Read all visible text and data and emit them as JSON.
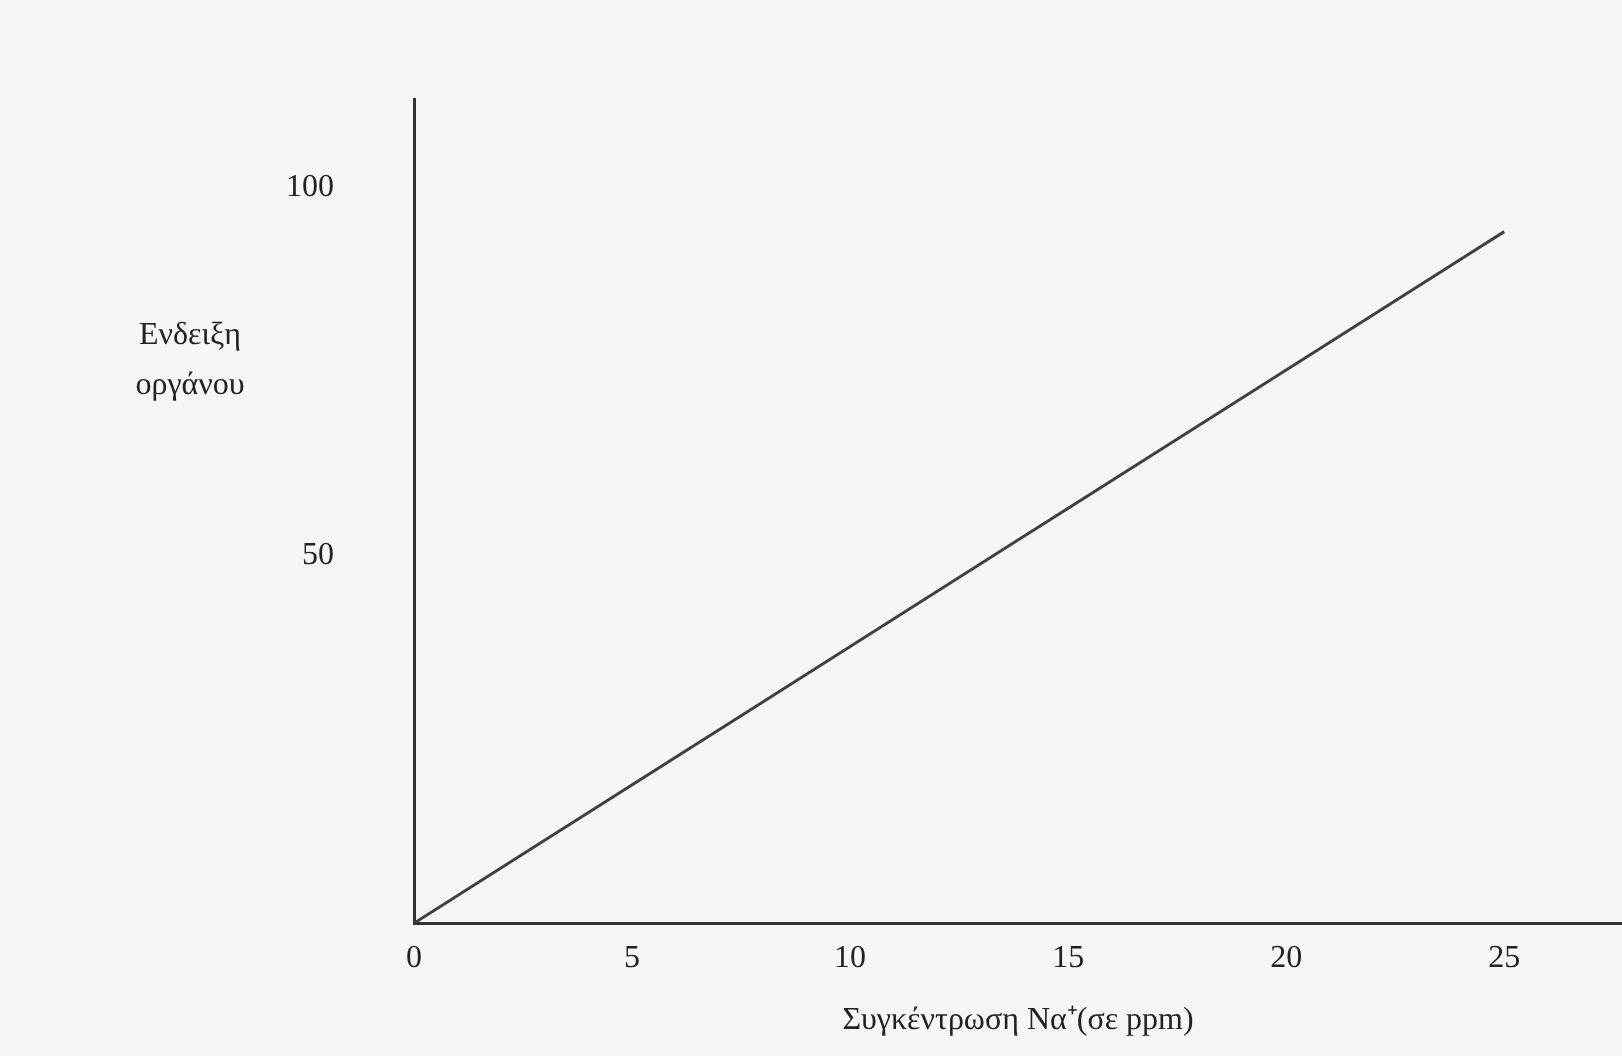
{
  "chart_data": {
    "type": "line",
    "xlabel": "Συγκέντρωση Να⁺(σε ppm)",
    "ylabel": "Ενδειξη οργάνου",
    "x": [
      0,
      25
    ],
    "series": [
      {
        "color": "#404040",
        "values": [
          0,
          94
        ]
      }
    ],
    "xlim": [
      0,
      27.7
    ],
    "xticks": [
      0,
      5,
      10,
      15,
      20,
      25
    ],
    "ylim": [
      0,
      112
    ],
    "yticks": [
      50,
      100
    ],
    "grid": false,
    "legend": false,
    "marker": "none",
    "line_style": "solid"
  }
}
